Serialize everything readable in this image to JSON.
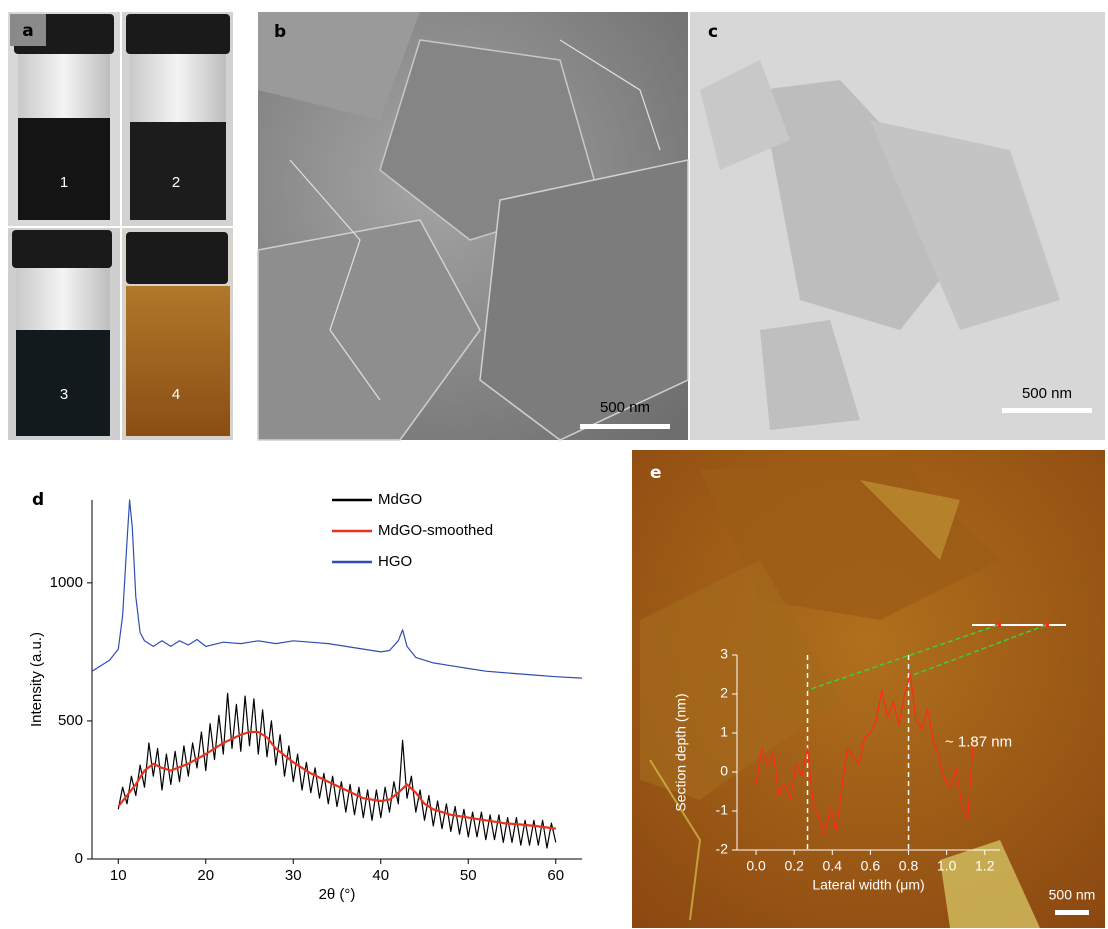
{
  "panels": {
    "a": {
      "label": "a",
      "vials": [
        "1",
        "2",
        "3",
        "4"
      ]
    },
    "b": {
      "label": "b",
      "scale_bar": "500 nm"
    },
    "c": {
      "label": "c",
      "scale_bar": "500 nm"
    },
    "d": {
      "label": "d"
    },
    "e": {
      "label": "e",
      "scale_bar": "500 nm"
    }
  },
  "chart_data": [
    {
      "type": "line",
      "xlabel": "2θ (°)",
      "ylabel": "Intensity (a.u.)",
      "xlim": [
        7,
        63
      ],
      "xticks": [
        10,
        20,
        30,
        40,
        50,
        60
      ],
      "ylim": [
        0,
        1300
      ],
      "yticks": [
        0,
        500,
        1000
      ],
      "legend": "upper right",
      "series": [
        {
          "name": "MdGO",
          "color": "#000000",
          "x": [
            10,
            10.5,
            11,
            11.5,
            12,
            12.5,
            13,
            13.5,
            14,
            14.5,
            15,
            15.5,
            16,
            16.5,
            17,
            17.5,
            18,
            18.5,
            19,
            19.5,
            20,
            20.5,
            21,
            21.5,
            22,
            22.5,
            23,
            23.5,
            24,
            24.5,
            25,
            25.5,
            26,
            26.5,
            27,
            27.5,
            28,
            28.5,
            29,
            29.5,
            30,
            30.5,
            31,
            31.5,
            32,
            32.5,
            33,
            33.5,
            34,
            34.5,
            35,
            35.5,
            36,
            36.5,
            37,
            37.5,
            38,
            38.5,
            39,
            39.5,
            40,
            40.5,
            41,
            41.5,
            42,
            42.5,
            43,
            43.5,
            44,
            44.5,
            45,
            45.5,
            46,
            46.5,
            47,
            47.5,
            48,
            48.5,
            49,
            49.5,
            50,
            50.5,
            51,
            51.5,
            52,
            52.5,
            53,
            53.5,
            54,
            54.5,
            55,
            55.5,
            56,
            56.5,
            57,
            57.5,
            58,
            58.5,
            59,
            59.5,
            60
          ],
          "values": [
            180,
            260,
            200,
            300,
            230,
            340,
            260,
            420,
            300,
            400,
            250,
            380,
            270,
            390,
            280,
            410,
            300,
            420,
            330,
            460,
            320,
            490,
            360,
            520,
            380,
            600,
            400,
            560,
            390,
            590,
            410,
            580,
            380,
            540,
            370,
            500,
            340,
            450,
            300,
            410,
            280,
            380,
            250,
            350,
            240,
            330,
            220,
            310,
            200,
            300,
            190,
            280,
            170,
            270,
            160,
            260,
            150,
            250,
            140,
            250,
            150,
            260,
            170,
            280,
            200,
            430,
            220,
            300,
            170,
            250,
            140,
            230,
            120,
            210,
            110,
            200,
            100,
            190,
            90,
            180,
            80,
            170,
            80,
            170,
            70,
            160,
            70,
            160,
            60,
            150,
            60,
            150,
            50,
            140,
            50,
            140,
            50,
            140,
            40,
            130,
            60
          ]
        },
        {
          "name": "MdGO-smoothed",
          "color": "#e8321e",
          "x": [
            10,
            11,
            12,
            13,
            14,
            15,
            16,
            18,
            20,
            22,
            24,
            25,
            26,
            27,
            28,
            30,
            32,
            34,
            36,
            38,
            40,
            41,
            42,
            43,
            44,
            45,
            46,
            48,
            50,
            52,
            54,
            56,
            58,
            60
          ],
          "values": [
            190,
            230,
            270,
            320,
            345,
            330,
            320,
            345,
            380,
            420,
            450,
            460,
            460,
            440,
            400,
            350,
            310,
            280,
            250,
            220,
            210,
            215,
            240,
            270,
            240,
            200,
            180,
            160,
            150,
            140,
            130,
            125,
            118,
            110
          ]
        },
        {
          "name": "HGO",
          "color": "#2f4fb0",
          "x": [
            7,
            8,
            9,
            10,
            10.5,
            11,
            11.3,
            11.6,
            12,
            12.5,
            13,
            14,
            15,
            16,
            17,
            18,
            19,
            20,
            22,
            24,
            26,
            28,
            30,
            32,
            34,
            36,
            38,
            40,
            41,
            42,
            42.5,
            43,
            44,
            46,
            48,
            50,
            52,
            54,
            56,
            58,
            60,
            63
          ],
          "values": [
            680,
            700,
            720,
            760,
            880,
            1150,
            1300,
            1200,
            950,
            820,
            790,
            770,
            790,
            770,
            790,
            775,
            795,
            770,
            785,
            780,
            790,
            780,
            790,
            785,
            780,
            770,
            760,
            750,
            755,
            790,
            830,
            770,
            730,
            710,
            700,
            690,
            680,
            675,
            670,
            665,
            660,
            655
          ]
        }
      ]
    },
    {
      "type": "line",
      "xlabel": "Lateral width (μm)",
      "ylabel": "Section depth (nm)",
      "xlim": [
        -0.1,
        1.28
      ],
      "xticks": [
        {
          "value": 0,
          "label": "0.0"
        },
        0.2,
        0.4,
        0.6,
        0.8,
        {
          "value": 1,
          "label": "1.0"
        },
        1.2
      ],
      "ylim": [
        -2,
        3
      ],
      "yticks": [
        -2,
        -1,
        0,
        1,
        2,
        3
      ],
      "annotation": "~ 1.87 nm",
      "vlines": [
        0.27,
        0.8
      ],
      "series": [
        {
          "color": "#ff2a1a",
          "x": [
            0,
            0.03,
            0.06,
            0.09,
            0.12,
            0.15,
            0.18,
            0.21,
            0.24,
            0.27,
            0.3,
            0.33,
            0.36,
            0.39,
            0.42,
            0.45,
            0.48,
            0.51,
            0.54,
            0.57,
            0.6,
            0.63,
            0.66,
            0.69,
            0.72,
            0.75,
            0.78,
            0.81,
            0.84,
            0.87,
            0.9,
            0.93,
            0.96,
            0.99,
            1.02,
            1.05,
            1.08,
            1.11,
            1.14
          ],
          "values": [
            -0.3,
            0.6,
            0.2,
            0.5,
            -0.6,
            -0.3,
            -0.7,
            0.2,
            -0.1,
            0.6,
            -0.8,
            -1.2,
            -1.6,
            -0.9,
            -1.5,
            -0.4,
            0.6,
            0.4,
            0.2,
            0.9,
            1.0,
            1.3,
            2.1,
            1.4,
            1.8,
            1.2,
            2.0,
            2.5,
            1.3,
            1.1,
            1.6,
            0.8,
            0.4,
            -0.2,
            -0.4,
            0.1,
            -0.9,
            -1.2,
            0.8
          ]
        }
      ]
    }
  ]
}
